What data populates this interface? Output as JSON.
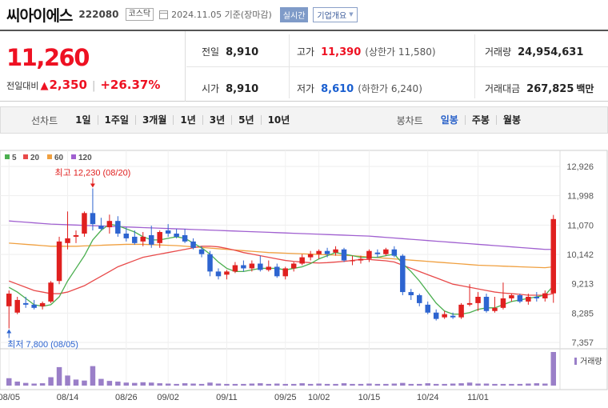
{
  "header": {
    "name": "씨아이에스",
    "code": "222080",
    "market": "코스닥",
    "date": "2024.11.05 기준(장마감)",
    "realtime": "실시간",
    "corp_overview": "기업개요"
  },
  "quote": {
    "price": "11,260",
    "change_label": "전일대비",
    "change": "2,350",
    "change_pct": "+26.37%",
    "prev_close_label": "전일",
    "prev_close": "8,910",
    "open_label": "시가",
    "open": "8,910",
    "high_label": "고가",
    "high": "11,390",
    "upper_limit": "(상한가 11,580)",
    "low_label": "저가",
    "low": "8,610",
    "lower_limit": "(하한가 6,240)",
    "volume_label": "거래량",
    "volume": "24,954,631",
    "amount_label": "거래대금",
    "amount": "267,825",
    "amount_unit": "백만"
  },
  "tabs": {
    "line_label": "선차트",
    "periods": [
      "1일",
      "1주일",
      "3개월",
      "1년",
      "3년",
      "5년",
      "10년"
    ],
    "candle_label": "봉차트",
    "candles": [
      "일봉",
      "주봉",
      "월봉"
    ],
    "selected_candle": "일봉"
  },
  "colors": {
    "up": "#e0201f",
    "down": "#2d64d0",
    "ma5": "#4caf50",
    "ma20": "#e84a4a",
    "ma60": "#f0a040",
    "ma120": "#a060d0",
    "volume": "#9a7fc8"
  },
  "chart_data": {
    "type": "candlestick",
    "legend": [
      {
        "name": "5",
        "color": "#4caf50"
      },
      {
        "name": "20",
        "color": "#e84a4a"
      },
      {
        "name": "60",
        "color": "#f0a040"
      },
      {
        "name": "120",
        "color": "#a060d0"
      }
    ],
    "y_ticks": [
      "12,926",
      "11,998",
      "11,070",
      "10,142",
      "9,213",
      "8,285",
      "7,357"
    ],
    "ylim": [
      7357,
      12926
    ],
    "x_ticks": [
      {
        "label": "08/05",
        "index": 0
      },
      {
        "label": "08/14",
        "index": 7
      },
      {
        "label": "08/26",
        "index": 14
      },
      {
        "label": "09/02",
        "index": 19
      },
      {
        "label": "09/11",
        "index": 26
      },
      {
        "label": "09/25",
        "index": 33
      },
      {
        "label": "10/02",
        "index": 37
      },
      {
        "label": "10/15",
        "index": 43
      },
      {
        "label": "10/24",
        "index": 50
      },
      {
        "label": "11/01",
        "index": 56
      }
    ],
    "annotations": {
      "high": "최고 12,230 (08/20)",
      "high_index": 10,
      "high_value": 12230,
      "low": "최저 7,800 (08/05)",
      "low_index": 0,
      "low_value": 7800
    },
    "volume_label": "거래량",
    "candles": [
      {
        "o": 8500,
        "h": 9000,
        "l": 7800,
        "c": 8900
      },
      {
        "o": 8300,
        "h": 8800,
        "l": 8250,
        "c": 8700
      },
      {
        "o": 8600,
        "h": 8800,
        "l": 8450,
        "c": 8550
      },
      {
        "o": 8550,
        "h": 8700,
        "l": 8400,
        "c": 8450
      },
      {
        "o": 8500,
        "h": 8650,
        "l": 8400,
        "c": 8600
      },
      {
        "o": 8650,
        "h": 9300,
        "l": 8600,
        "c": 9250
      },
      {
        "o": 9300,
        "h": 10700,
        "l": 9200,
        "c": 10550
      },
      {
        "o": 10500,
        "h": 11500,
        "l": 10300,
        "c": 10650
      },
      {
        "o": 10700,
        "h": 10900,
        "l": 10500,
        "c": 10750
      },
      {
        "o": 10800,
        "h": 11500,
        "l": 10700,
        "c": 11450
      },
      {
        "o": 11450,
        "h": 12230,
        "l": 10900,
        "c": 11100
      },
      {
        "o": 11050,
        "h": 11300,
        "l": 10900,
        "c": 10950
      },
      {
        "o": 11000,
        "h": 11400,
        "l": 10800,
        "c": 11200
      },
      {
        "o": 11200,
        "h": 11350,
        "l": 10700,
        "c": 10800
      },
      {
        "o": 10800,
        "h": 11000,
        "l": 10550,
        "c": 10650
      },
      {
        "o": 10700,
        "h": 10900,
        "l": 10450,
        "c": 10500
      },
      {
        "o": 10550,
        "h": 10850,
        "l": 10400,
        "c": 10700
      },
      {
        "o": 10750,
        "h": 11050,
        "l": 10350,
        "c": 10450
      },
      {
        "o": 10500,
        "h": 10900,
        "l": 10350,
        "c": 10850
      },
      {
        "o": 10900,
        "h": 11100,
        "l": 10700,
        "c": 10800
      },
      {
        "o": 10800,
        "h": 10950,
        "l": 10650,
        "c": 10700
      },
      {
        "o": 10750,
        "h": 10950,
        "l": 10500,
        "c": 10550
      },
      {
        "o": 10550,
        "h": 10650,
        "l": 10300,
        "c": 10350
      },
      {
        "o": 10300,
        "h": 10400,
        "l": 10050,
        "c": 10150
      },
      {
        "o": 10150,
        "h": 10250,
        "l": 9450,
        "c": 9600
      },
      {
        "o": 9600,
        "h": 9700,
        "l": 9350,
        "c": 9450
      },
      {
        "o": 9500,
        "h": 9650,
        "l": 9350,
        "c": 9600
      },
      {
        "o": 9600,
        "h": 9900,
        "l": 9550,
        "c": 9800
      },
      {
        "o": 9800,
        "h": 9950,
        "l": 9600,
        "c": 9700
      },
      {
        "o": 9700,
        "h": 9950,
        "l": 9600,
        "c": 9850
      },
      {
        "o": 9850,
        "h": 10100,
        "l": 9600,
        "c": 9650
      },
      {
        "o": 9650,
        "h": 9950,
        "l": 9600,
        "c": 9750
      },
      {
        "o": 9750,
        "h": 9850,
        "l": 9400,
        "c": 9450
      },
      {
        "o": 9450,
        "h": 9750,
        "l": 9350,
        "c": 9700
      },
      {
        "o": 9700,
        "h": 9900,
        "l": 9600,
        "c": 9850
      },
      {
        "o": 9850,
        "h": 10150,
        "l": 9800,
        "c": 10050
      },
      {
        "o": 10050,
        "h": 10250,
        "l": 9950,
        "c": 10150
      },
      {
        "o": 10150,
        "h": 10300,
        "l": 10000,
        "c": 10250
      },
      {
        "o": 10250,
        "h": 10350,
        "l": 10050,
        "c": 10150
      },
      {
        "o": 10200,
        "h": 10400,
        "l": 10100,
        "c": 10300
      },
      {
        "o": 10300,
        "h": 10350,
        "l": 9900,
        "c": 9950
      },
      {
        "o": 9950,
        "h": 10100,
        "l": 9800,
        "c": 9950
      },
      {
        "o": 9950,
        "h": 10100,
        "l": 9850,
        "c": 10000
      },
      {
        "o": 10000,
        "h": 10300,
        "l": 9900,
        "c": 10250
      },
      {
        "o": 10200,
        "h": 10300,
        "l": 10050,
        "c": 10150
      },
      {
        "o": 10150,
        "h": 10350,
        "l": 10100,
        "c": 10300
      },
      {
        "o": 10300,
        "h": 10400,
        "l": 10050,
        "c": 10100
      },
      {
        "o": 10100,
        "h": 10150,
        "l": 8850,
        "c": 8950
      },
      {
        "o": 8950,
        "h": 9050,
        "l": 8700,
        "c": 8850
      },
      {
        "o": 8850,
        "h": 8900,
        "l": 8500,
        "c": 8600
      },
      {
        "o": 8550,
        "h": 8650,
        "l": 8250,
        "c": 8300
      },
      {
        "o": 8300,
        "h": 8400,
        "l": 8050,
        "c": 8100
      },
      {
        "o": 8150,
        "h": 8350,
        "l": 8100,
        "c": 8250
      },
      {
        "o": 8200,
        "h": 8300,
        "l": 8100,
        "c": 8150
      },
      {
        "o": 8150,
        "h": 8600,
        "l": 8100,
        "c": 8550
      },
      {
        "o": 8550,
        "h": 9200,
        "l": 8500,
        "c": 8600
      },
      {
        "o": 8600,
        "h": 8950,
        "l": 8350,
        "c": 8800
      },
      {
        "o": 8800,
        "h": 8900,
        "l": 8300,
        "c": 8350
      }
    ],
    "extra_candles": [
      {
        "o": 8350,
        "h": 8800,
        "l": 8300,
        "c": 8450
      },
      {
        "o": 8450,
        "h": 9250,
        "l": 8400,
        "c": 8750
      },
      {
        "o": 8750,
        "h": 8900,
        "l": 8650,
        "c": 8850
      },
      {
        "o": 8850,
        "h": 8900,
        "l": 8600,
        "c": 8650
      },
      {
        "o": 8650,
        "h": 8900,
        "l": 8550,
        "c": 8800
      },
      {
        "o": 8800,
        "h": 8950,
        "l": 8650,
        "c": 8750
      },
      {
        "o": 8750,
        "h": 9000,
        "l": 8650,
        "c": 8910
      },
      {
        "o": 8910,
        "h": 11390,
        "l": 8610,
        "c": 11260
      }
    ],
    "ma": {
      "ma5": [
        9100,
        8950,
        8750,
        8550,
        8500,
        8550,
        8800,
        9300,
        9700,
        10100,
        10600,
        10900,
        11100,
        11050,
        10950,
        10850,
        10700,
        10600,
        10600,
        10650,
        10700,
        10650,
        10500,
        10350,
        10150,
        9900,
        9700,
        9600,
        9600,
        9650,
        9700,
        9700,
        9700,
        9650,
        9700,
        9750,
        9850,
        10000,
        10100,
        10200,
        10150,
        10100,
        10050,
        10050,
        10050,
        10100,
        10150,
        9850,
        9600,
        9300,
        8950,
        8600,
        8350,
        8250,
        8250,
        8300,
        8400,
        8450,
        8450,
        8550,
        8650,
        8700,
        8750,
        8800,
        8850,
        9150
      ],
      "ma20": [
        9300,
        9200,
        9100,
        9000,
        8950,
        8900,
        8900,
        8950,
        9050,
        9150,
        9300,
        9450,
        9600,
        9750,
        9850,
        9950,
        10050,
        10100,
        10150,
        10200,
        10250,
        10300,
        10350,
        10400,
        10400,
        10380,
        10330,
        10270,
        10200,
        10150,
        10100,
        10050,
        10000,
        9950,
        9920,
        9900,
        9880,
        9870,
        9880,
        9900,
        9920,
        9950,
        9980,
        9980,
        9960,
        9940,
        9900,
        9800,
        9700,
        9600,
        9500,
        9400,
        9300,
        9200,
        9150,
        9100,
        9050,
        9000,
        8950,
        8920,
        8900,
        8880,
        8850,
        8850,
        8850,
        8900
      ],
      "ma60": [
        10500,
        10480,
        10460,
        10440,
        10420,
        10400,
        10400,
        10400,
        10400,
        10410,
        10420,
        10430,
        10440,
        10450,
        10460,
        10460,
        10460,
        10450,
        10440,
        10430,
        10420,
        10400,
        10380,
        10360,
        10340,
        10320,
        10300,
        10280,
        10260,
        10240,
        10220,
        10200,
        10190,
        10180,
        10170,
        10160,
        10150,
        10140,
        10130,
        10120,
        10110,
        10100,
        10080,
        10060,
        10040,
        10020,
        10000,
        9980,
        9960,
        9940,
        9920,
        9900,
        9880,
        9860,
        9840,
        9820,
        9800,
        9790,
        9780,
        9770,
        9760,
        9750,
        9740,
        9730,
        9720,
        9750
      ],
      "ma120": [
        11200,
        11180,
        11160,
        11140,
        11120,
        11100,
        11090,
        11080,
        11070,
        11060,
        11050,
        11040,
        11030,
        11020,
        11010,
        11000,
        10990,
        10980,
        10970,
        10960,
        10950,
        10940,
        10930,
        10920,
        10910,
        10900,
        10890,
        10880,
        10870,
        10860,
        10850,
        10840,
        10830,
        10820,
        10810,
        10800,
        10790,
        10780,
        10770,
        10760,
        10750,
        10740,
        10730,
        10720,
        10700,
        10680,
        10660,
        10640,
        10620,
        10600,
        10580,
        10560,
        10540,
        10520,
        10500,
        10480,
        10460,
        10440,
        10420,
        10400,
        10380,
        10360,
        10340,
        10320,
        10300,
        10300
      ]
    },
    "volume": [
      0.22,
      0.12,
      0.08,
      0.06,
      0.07,
      0.25,
      0.55,
      0.3,
      0.18,
      0.15,
      0.58,
      0.2,
      0.14,
      0.12,
      0.09,
      0.08,
      0.1,
      0.09,
      0.07,
      0.06,
      0.05,
      0.07,
      0.06,
      0.05,
      0.09,
      0.06,
      0.05,
      0.05,
      0.05,
      0.06,
      0.07,
      0.05,
      0.06,
      0.05,
      0.05,
      0.07,
      0.05,
      0.06,
      0.05,
      0.05,
      0.07,
      0.05,
      0.05,
      0.06,
      0.05,
      0.05,
      0.06,
      0.08,
      0.05,
      0.05,
      0.07,
      0.05,
      0.05,
      0.06,
      0.07,
      0.09,
      0.06,
      0.06,
      0.05,
      0.05,
      0.05,
      0.05,
      0.06,
      0.07,
      0.06,
      1.0
    ]
  }
}
